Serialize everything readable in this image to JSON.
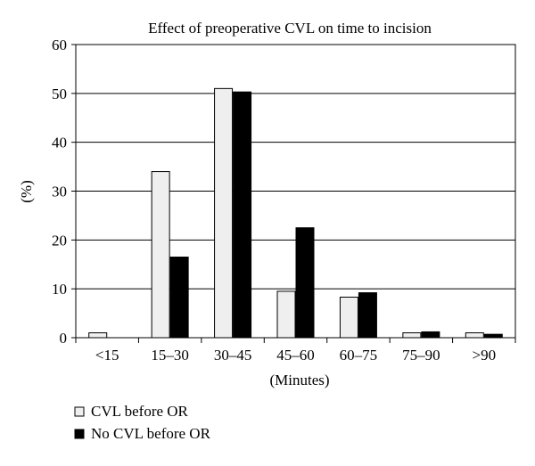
{
  "chart_data": {
    "type": "bar",
    "title": "Effect of preoperative CVL on time to incision",
    "xlabel": "(Minutes)",
    "ylabel": "(%)",
    "ylim": [
      0,
      60
    ],
    "yticks": [
      0,
      10,
      20,
      30,
      40,
      50,
      60
    ],
    "grid": true,
    "categories": [
      "<15",
      "15–30",
      "30–45",
      "45–60",
      "60–75",
      "75–90",
      ">90"
    ],
    "series": [
      {
        "name": "CVL before OR",
        "color": "#efefef",
        "values": [
          1.0,
          34.0,
          51.0,
          9.5,
          8.3,
          1.0,
          1.0
        ]
      },
      {
        "name": "No CVL before OR",
        "color": "#000000",
        "values": [
          0,
          16.5,
          50.3,
          22.5,
          9.2,
          1.2,
          0.7
        ]
      }
    ],
    "legend_position": "bottom-left"
  }
}
